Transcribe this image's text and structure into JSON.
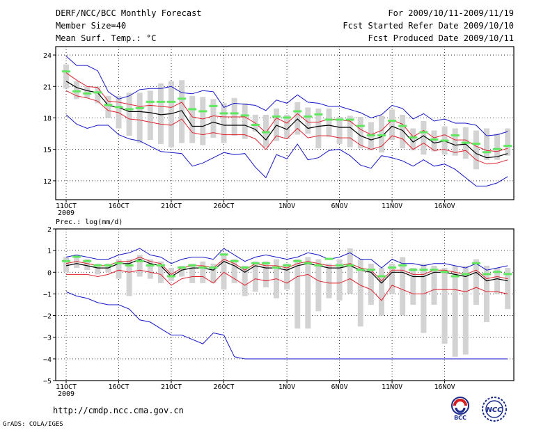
{
  "header": {
    "title": "DERF/NCC/BCC Monthly Forecast",
    "member_size": "Member Size=40",
    "variable": "Mean Surf. Temp.: °C",
    "period": "For 2009/10/11-2009/11/19",
    "fcst_started": "Fcst Started Refer Date 2009/10/10",
    "fcst_produced": "Fcst Produced Date 2009/10/11"
  },
  "footer": {
    "url": "http://cmdp.ncc.cma.gov.cn",
    "credit": "GrADS: COLA/IGES",
    "logo_bcc_text": "BCC",
    "logo_ncc_text": "NCC"
  },
  "colors": {
    "ensemble_box": "#d3d3d3",
    "mean_line": "#000000",
    "spread_inner": "#e0202c",
    "spread_outer": "#1515c8",
    "member_mark": "#5ee85e"
  },
  "chart_data": [
    {
      "type": "line",
      "title": "Mean Surf. Temp.: °C",
      "xlabel": "",
      "ylabel": "",
      "ylim": [
        10.2,
        24.8
      ],
      "yticks": [
        "12",
        "15",
        "18",
        "21",
        "24"
      ],
      "xlabels": [
        "11OCT",
        "16OCT",
        "21OCT",
        "26OCT",
        "1NOV",
        "6NOV",
        "11NOV",
        "16NOV"
      ],
      "year_label": "2009",
      "series": [
        {
          "name": "mean",
          "values": [
            21.5,
            20.9,
            20.6,
            20.4,
            19.2,
            19.0,
            18.6,
            18.6,
            18.5,
            18.3,
            18.4,
            18.7,
            17.2,
            17.2,
            17.6,
            17.3,
            17.3,
            17.3,
            16.9,
            15.9,
            17.3,
            16.9,
            17.9,
            17.0,
            17.2,
            17.3,
            17.1,
            17.1,
            16.3,
            15.9,
            16.2,
            17.2,
            16.8,
            15.7,
            16.3,
            15.6,
            15.8,
            15.4,
            15.5,
            14.6,
            14.2,
            14.3,
            14.6
          ]
        },
        {
          "name": "lower_inner",
          "values": [
            20.6,
            20.1,
            19.9,
            19.6,
            18.7,
            18.5,
            17.9,
            17.8,
            17.6,
            17.4,
            17.3,
            17.9,
            16.6,
            16.4,
            16.6,
            16.4,
            16.4,
            16.4,
            16.0,
            15.0,
            16.3,
            16.0,
            17.0,
            16.1,
            16.3,
            16.3,
            16.1,
            16.1,
            15.4,
            15.0,
            15.3,
            16.3,
            16.0,
            15.0,
            15.6,
            14.9,
            15.0,
            14.7,
            14.9,
            14.0,
            13.6,
            13.7,
            14.0
          ]
        },
        {
          "name": "upper_inner",
          "values": [
            22.3,
            21.6,
            21.0,
            20.9,
            19.6,
            19.5,
            19.3,
            19.1,
            19.2,
            19.1,
            19.0,
            19.5,
            18.1,
            17.9,
            18.2,
            18.1,
            18.1,
            18.1,
            17.5,
            16.6,
            18.0,
            17.5,
            18.4,
            17.6,
            17.6,
            17.9,
            17.8,
            17.7,
            16.9,
            16.4,
            16.8,
            17.8,
            17.4,
            16.2,
            16.8,
            16.1,
            16.4,
            15.9,
            15.9,
            15.3,
            14.9,
            14.8,
            15.1
          ]
        },
        {
          "name": "lower_outer",
          "values": [
            18.3,
            17.4,
            17.0,
            17.3,
            17.3,
            16.4,
            16.0,
            15.8,
            15.3,
            14.8,
            14.7,
            14.6,
            13.4,
            13.7,
            14.2,
            14.7,
            14.5,
            14.6,
            13.3,
            12.3,
            14.5,
            14.1,
            15.5,
            14.0,
            14.2,
            14.9,
            15.0,
            14.4,
            13.5,
            13.2,
            14.4,
            14.2,
            13.9,
            13.4,
            14.0,
            13.4,
            13.6,
            13.1,
            12.3,
            11.5,
            11.5,
            11.8,
            12.4
          ]
        },
        {
          "name": "upper_outer",
          "values": [
            23.9,
            23.0,
            23.0,
            22.5,
            20.5,
            19.8,
            20.1,
            20.7,
            20.8,
            20.8,
            21.0,
            20.4,
            20.3,
            20.6,
            20.5,
            19.0,
            19.4,
            19.3,
            19.2,
            18.7,
            19.7,
            19.4,
            20.2,
            19.5,
            19.4,
            19.1,
            19.1,
            18.8,
            18.5,
            18.0,
            18.3,
            19.2,
            18.9,
            17.9,
            18.4,
            17.7,
            17.9,
            17.5,
            17.5,
            17.3,
            16.3,
            16.4,
            16.7
          ]
        },
        {
          "name": "member_marks",
          "values": [
            22.4,
            20.5,
            20.3,
            20.4,
            19.2,
            19.0,
            18.8,
            18.9,
            19.5,
            19.5,
            19.5,
            19.8,
            18.8,
            18.6,
            19.1,
            18.4,
            18.4,
            18.2,
            17.3,
            16.6,
            18.1,
            18.0,
            18.6,
            18.1,
            18.3,
            17.8,
            17.8,
            17.8,
            17.2,
            16.3,
            16.3,
            17.7,
            17.2,
            16.1,
            16.6,
            15.9,
            15.8,
            16.3,
            15.6,
            15.5,
            14.7,
            15.0,
            15.3
          ]
        },
        {
          "name": "box_low",
          "values": [
            20.8,
            19.8,
            19.9,
            19.4,
            18.0,
            17.0,
            16.3,
            15.6,
            15.9,
            15.5,
            15.2,
            15.6,
            15.6,
            15.4,
            16.1,
            15.6,
            16.3,
            16.0,
            16.7,
            15.2,
            15.8,
            16.0,
            16.4,
            16.5,
            15.1,
            16.2,
            15.5,
            15.2,
            15.1,
            14.9,
            14.7,
            15.9,
            15.1,
            14.9,
            14.5,
            14.8,
            14.5,
            14.4,
            14.1,
            13.1,
            14.0,
            14.0,
            14.4
          ]
        },
        {
          "name": "box_high",
          "values": [
            23.1,
            21.5,
            21.0,
            21.0,
            20.1,
            20.1,
            20.4,
            20.4,
            20.6,
            21.3,
            21.5,
            21.6,
            20.1,
            20.0,
            19.8,
            19.4,
            19.9,
            19.4,
            18.3,
            18.3,
            18.9,
            18.3,
            19.5,
            19.0,
            18.9,
            18.9,
            18.1,
            18.2,
            18.1,
            17.6,
            18.2,
            18.8,
            18.3,
            17.0,
            17.7,
            16.8,
            17.2,
            17.0,
            17.1,
            16.8,
            17.0,
            16.5,
            17.0
          ]
        }
      ]
    },
    {
      "type": "line",
      "title": "Prec.: log(mm/d)",
      "xlabel": "",
      "ylabel": "",
      "ylim": [
        -5,
        2
      ],
      "yticks": [
        "2",
        "1",
        "0",
        "−1",
        "−2",
        "−3",
        "−4",
        "−5"
      ],
      "xlabels": [
        "11OCT",
        "16OCT",
        "21OCT",
        "26OCT",
        "1NOV",
        "6NOV",
        "11NOV",
        "16NOV"
      ],
      "year_label": "2009",
      "series": [
        {
          "name": "mean",
          "values": [
            0.3,
            0.4,
            0.3,
            0.2,
            0.2,
            0.4,
            0.4,
            0.6,
            0.4,
            0.3,
            -0.2,
            0.1,
            0.2,
            0.2,
            0.1,
            0.5,
            0.3,
            0.0,
            0.3,
            0.2,
            0.2,
            0.1,
            0.3,
            0.4,
            0.3,
            0.2,
            0.2,
            0.3,
            0.1,
            0.0,
            -0.5,
            0.0,
            0.0,
            -0.2,
            -0.2,
            0.0,
            0.0,
            -0.1,
            -0.2,
            0.0,
            -0.4,
            -0.3,
            -0.4
          ]
        },
        {
          "name": "lower_inner",
          "values": [
            -0.1,
            -0.1,
            -0.1,
            -0.2,
            -0.1,
            0.1,
            0.0,
            0.1,
            0.0,
            -0.1,
            -0.6,
            -0.3,
            -0.2,
            -0.2,
            -0.5,
            0.0,
            -0.3,
            -0.6,
            -0.3,
            -0.4,
            -0.3,
            -0.5,
            -0.2,
            -0.1,
            -0.4,
            -0.5,
            -0.5,
            -0.3,
            -0.6,
            -0.8,
            -1.3,
            -0.6,
            -0.8,
            -1.0,
            -1.0,
            -0.8,
            -0.8,
            -0.8,
            -0.9,
            -0.7,
            -0.9,
            -0.9,
            -1.0
          ]
        },
        {
          "name": "upper_inner",
          "values": [
            0.4,
            0.5,
            0.4,
            0.3,
            0.3,
            0.5,
            0.5,
            0.7,
            0.5,
            0.4,
            -0.1,
            0.2,
            0.3,
            0.3,
            0.2,
            0.6,
            0.4,
            0.1,
            0.4,
            0.3,
            0.3,
            0.2,
            0.4,
            0.5,
            0.4,
            0.3,
            0.3,
            0.4,
            0.2,
            0.1,
            -0.4,
            0.1,
            0.1,
            -0.1,
            -0.1,
            0.1,
            0.1,
            0.0,
            -0.1,
            0.1,
            -0.3,
            -0.2,
            -0.3
          ]
        },
        {
          "name": "lower_outer",
          "values": [
            -0.9,
            -1.1,
            -1.2,
            -1.4,
            -1.5,
            -1.5,
            -1.7,
            -2.2,
            -2.3,
            -2.6,
            -2.9,
            -2.9,
            -3.1,
            -3.3,
            -2.8,
            -2.9,
            -3.9,
            -4.0,
            -4.0,
            -4.0,
            -4.0,
            -4.0,
            -4.0,
            -4.0,
            -4.0,
            -4.0,
            -4.0,
            -4.0,
            -4.0,
            -4.0,
            -4.0,
            -4.0,
            -4.0,
            -4.0,
            -4.0,
            -4.0,
            -4.0,
            -4.0,
            -4.0,
            -4.0,
            -4.0,
            -4.0,
            -4.0
          ]
        },
        {
          "name": "upper_outer",
          "values": [
            0.7,
            0.8,
            0.7,
            0.6,
            0.6,
            0.8,
            0.9,
            1.1,
            0.8,
            0.7,
            0.4,
            0.6,
            0.7,
            0.7,
            0.6,
            1.1,
            0.8,
            0.5,
            0.7,
            0.8,
            0.7,
            0.6,
            0.7,
            0.9,
            0.8,
            0.6,
            0.7,
            0.9,
            0.6,
            0.6,
            0.2,
            0.6,
            0.4,
            0.4,
            0.3,
            0.4,
            0.4,
            0.3,
            0.2,
            0.4,
            0.1,
            0.2,
            0.3
          ]
        },
        {
          "name": "member_marks",
          "values": [
            0.5,
            0.7,
            0.5,
            0.3,
            0.3,
            0.4,
            0.3,
            0.5,
            0.3,
            0.3,
            -0.2,
            0.2,
            0.3,
            0.2,
            0.2,
            0.8,
            0.5,
            0.2,
            0.4,
            0.4,
            0.2,
            0.3,
            0.5,
            0.4,
            0.3,
            0.6,
            0.3,
            0.3,
            0.1,
            0.1,
            -0.2,
            0.2,
            0.3,
            0.1,
            0.1,
            0.1,
            0.0,
            -0.2,
            -0.1,
            0.4,
            -0.1,
            0.0,
            -0.1
          ]
        },
        {
          "name": "box_low",
          "values": [
            0.0,
            0.2,
            0.1,
            -0.1,
            0.0,
            -0.3,
            -1.1,
            -0.2,
            -0.3,
            -0.5,
            -0.4,
            -0.2,
            -0.5,
            -0.5,
            -0.5,
            -0.8,
            -0.5,
            -1.1,
            -0.9,
            -0.7,
            -1.2,
            -0.8,
            -2.6,
            -2.6,
            -1.8,
            -1.2,
            -1.3,
            -1.0,
            -2.5,
            -1.5,
            -2.0,
            -1.0,
            -2.0,
            -1.5,
            -2.8,
            -1.5,
            -3.3,
            -3.9,
            -3.8,
            -1.5,
            -2.3,
            -1.0,
            -1.7
          ]
        },
        {
          "name": "box_high",
          "values": [
            0.7,
            0.8,
            0.6,
            0.4,
            0.4,
            0.6,
            0.6,
            0.8,
            0.6,
            0.5,
            0.2,
            0.3,
            0.4,
            0.5,
            0.4,
            0.9,
            0.6,
            0.3,
            0.5,
            0.5,
            0.6,
            0.4,
            0.6,
            0.7,
            0.6,
            0.4,
            0.6,
            1.1,
            0.6,
            0.4,
            0.2,
            0.4,
            0.7,
            0.2,
            0.4,
            0.3,
            0.2,
            0.3,
            0.3,
            0.6,
            0.3,
            0.2,
            0.2
          ]
        }
      ]
    }
  ]
}
